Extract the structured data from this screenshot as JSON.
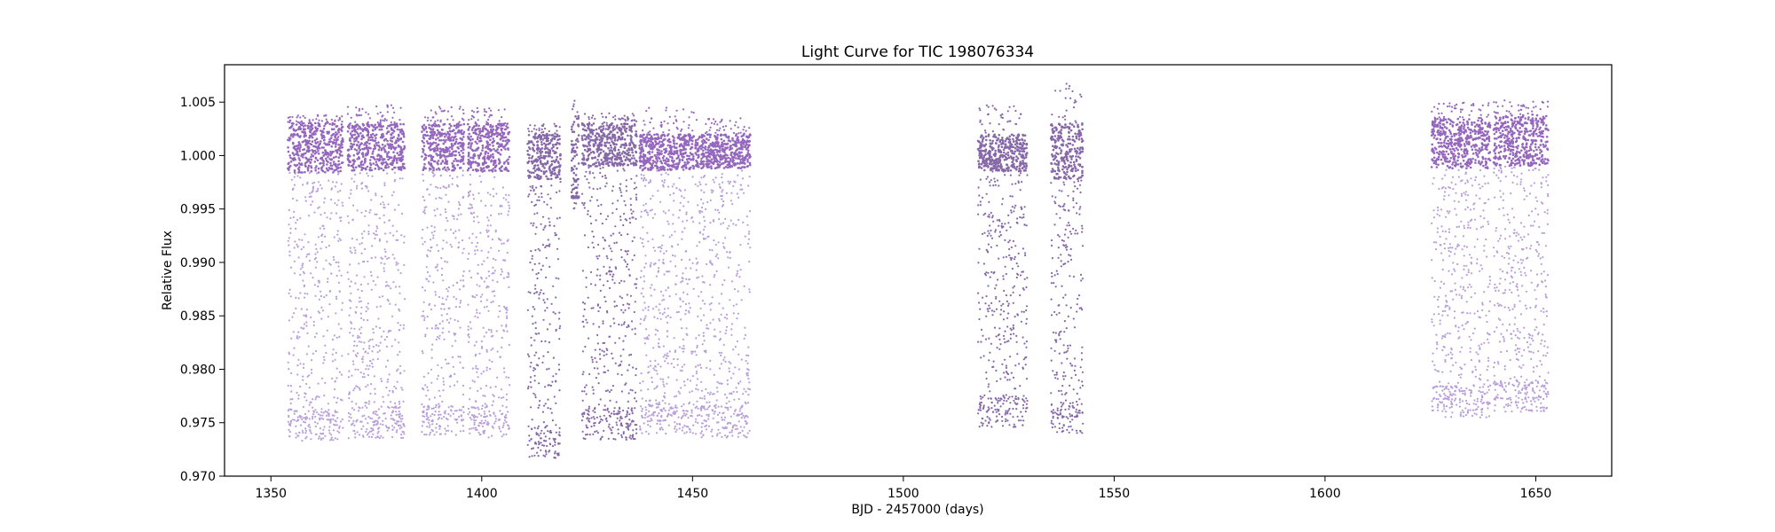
{
  "chart_data": {
    "type": "scatter",
    "title": "Light Curve for TIC 198076334",
    "xlabel": "BJD - 2457000 (days)",
    "ylabel": "Relative Flux",
    "xlim": [
      1339,
      1668
    ],
    "ylim": [
      0.97,
      1.0085
    ],
    "x_ticks": [
      1350,
      1400,
      1450,
      1500,
      1550,
      1600,
      1650
    ],
    "y_ticks": [
      0.97,
      0.975,
      0.98,
      0.985,
      0.99,
      0.995,
      1.0,
      1.005
    ],
    "y_tick_labels": [
      "0.970",
      "0.975",
      "0.980",
      "0.985",
      "0.990",
      "0.995",
      "1.000",
      "1.005"
    ],
    "grid": false,
    "colors": {
      "light": "#b89fd9",
      "dense": "#9467bd",
      "dark": "#8668a8"
    },
    "series": [
      {
        "x": [
          1354.0,
          1367.1
        ],
        "band": [
          0.9984,
          1.0031
        ],
        "min": 0.9733,
        "max": 1.0038,
        "variant": "light"
      },
      {
        "x": [
          1368.2,
          1381.8
        ],
        "band": [
          0.9986,
          1.003
        ],
        "min": 0.9735,
        "max": 1.0048,
        "variant": "light"
      },
      {
        "x": [
          1385.8,
          1395.8
        ],
        "band": [
          0.9986,
          1.003
        ],
        "min": 0.9738,
        "max": 1.0046,
        "variant": "light"
      },
      {
        "x": [
          1396.7,
          1406.6
        ],
        "band": [
          0.9985,
          1.003
        ],
        "min": 0.9735,
        "max": 1.0046,
        "variant": "light"
      },
      {
        "x": [
          1410.9,
          1418.7
        ],
        "band": [
          0.9978,
          1.0021
        ],
        "min": 0.9717,
        "max": 1.0031,
        "variant": "dark"
      },
      {
        "x": [
          1421.3,
          1423.1
        ],
        "band": [
          0.996,
          1.004
        ],
        "min": 0.995,
        "max": 1.0052,
        "variant": "dark"
      },
      {
        "x": [
          1423.8,
          1436.8
        ],
        "band": [
          0.999,
          1.003
        ],
        "min": 0.9734,
        "max": 1.004,
        "variant": "dark"
      },
      {
        "x": [
          1437.4,
          1450.3
        ],
        "band": [
          0.9986,
          1.002
        ],
        "min": 0.9739,
        "max": 1.0045,
        "variant": "light"
      },
      {
        "x": [
          1450.6,
          1463.7
        ],
        "band": [
          0.9988,
          1.002
        ],
        "min": 0.9736,
        "max": 1.0035,
        "variant": "light"
      },
      {
        "x": [
          1517.7,
          1529.4
        ],
        "band": [
          0.9985,
          1.002
        ],
        "min": 0.9746,
        "max": 1.0047,
        "variant": "dark"
      },
      {
        "x": [
          1535.0,
          1542.6
        ],
        "band": [
          0.9978,
          1.003
        ],
        "min": 0.974,
        "max": 1.0068,
        "variant": "dark"
      },
      {
        "x": [
          1625.3,
          1639.2
        ],
        "band": [
          0.9988,
          1.0035
        ],
        "min": 0.9755,
        "max": 1.005,
        "variant": "light"
      },
      {
        "x": [
          1640.0,
          1653.0
        ],
        "band": [
          0.999,
          1.0038
        ],
        "min": 0.976,
        "max": 1.0052,
        "variant": "light"
      }
    ]
  }
}
